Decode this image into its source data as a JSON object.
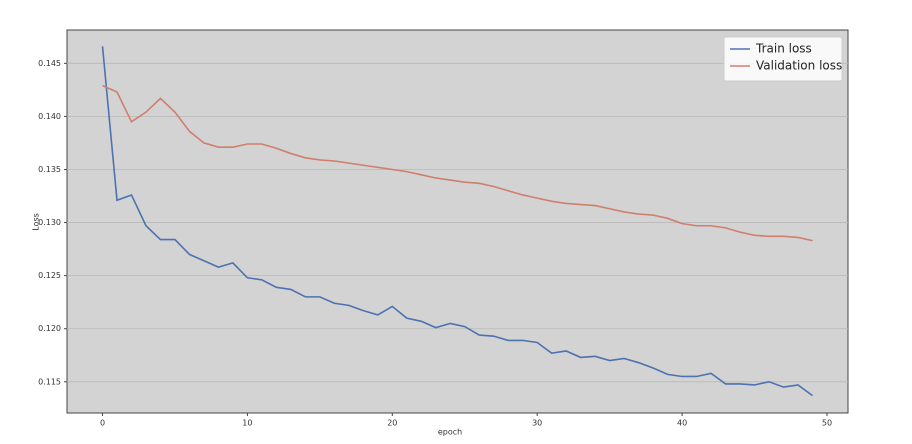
{
  "chart_data": {
    "type": "line",
    "xlabel": "epoch",
    "ylabel": "Loss",
    "x": [
      0,
      1,
      2,
      3,
      4,
      5,
      6,
      7,
      8,
      9,
      10,
      11,
      12,
      13,
      14,
      15,
      16,
      17,
      18,
      19,
      20,
      21,
      22,
      23,
      24,
      25,
      26,
      27,
      28,
      29,
      30,
      31,
      32,
      33,
      34,
      35,
      36,
      37,
      38,
      39,
      40,
      41,
      42,
      43,
      44,
      45,
      46,
      47,
      48,
      49
    ],
    "series": [
      {
        "name": "Train loss",
        "color": "#4c72b0",
        "values": [
          0.1466,
          0.1321,
          0.1326,
          0.1297,
          0.1284,
          0.1284,
          0.127,
          0.1264,
          0.1258,
          0.1262,
          0.1248,
          0.1246,
          0.1239,
          0.1237,
          0.123,
          0.123,
          0.1224,
          0.1222,
          0.1217,
          0.1213,
          0.1221,
          0.121,
          0.1207,
          0.1201,
          0.1205,
          0.1202,
          0.1194,
          0.1193,
          0.1189,
          0.1189,
          0.1187,
          0.1177,
          0.1179,
          0.1173,
          0.1174,
          0.117,
          0.1172,
          0.1168,
          0.1163,
          0.1157,
          0.1155,
          0.1155,
          0.1158,
          0.1148,
          0.1148,
          0.1147,
          0.115,
          0.1145,
          0.1147,
          0.1137
        ]
      },
      {
        "name": "Validation loss",
        "color": "#cf7f6c",
        "values": [
          0.1429,
          0.1423,
          0.1395,
          0.1404,
          0.1417,
          0.1404,
          0.1386,
          0.1375,
          0.1371,
          0.1371,
          0.1374,
          0.1374,
          0.137,
          0.1365,
          0.1361,
          0.1359,
          0.1358,
          0.1356,
          0.1354,
          0.1352,
          0.135,
          0.1348,
          0.1345,
          0.1342,
          0.134,
          0.1338,
          0.1337,
          0.1334,
          0.133,
          0.1326,
          0.1323,
          0.132,
          0.1318,
          0.1317,
          0.1316,
          0.1313,
          0.131,
          0.1308,
          0.1307,
          0.1304,
          0.1299,
          0.1297,
          0.1297,
          0.1295,
          0.1291,
          0.1288,
          0.1287,
          0.1287,
          0.1286,
          0.1283
        ]
      }
    ],
    "xlim": [
      -2.45,
      51.45
    ],
    "ylim": [
      0.11206,
      0.14814
    ],
    "xticks": [
      0,
      10,
      20,
      30,
      40,
      50
    ],
    "yticks": [
      0.115,
      {
        "value": 0.12,
        "label": "0.120"
      },
      0.125,
      {
        "value": 0.13,
        "label": "0.130"
      },
      0.135,
      {
        "value": 0.14,
        "label": "0.140"
      },
      0.145
    ],
    "grid": true,
    "legend": "upper right",
    "background": "#d3d3d3"
  }
}
